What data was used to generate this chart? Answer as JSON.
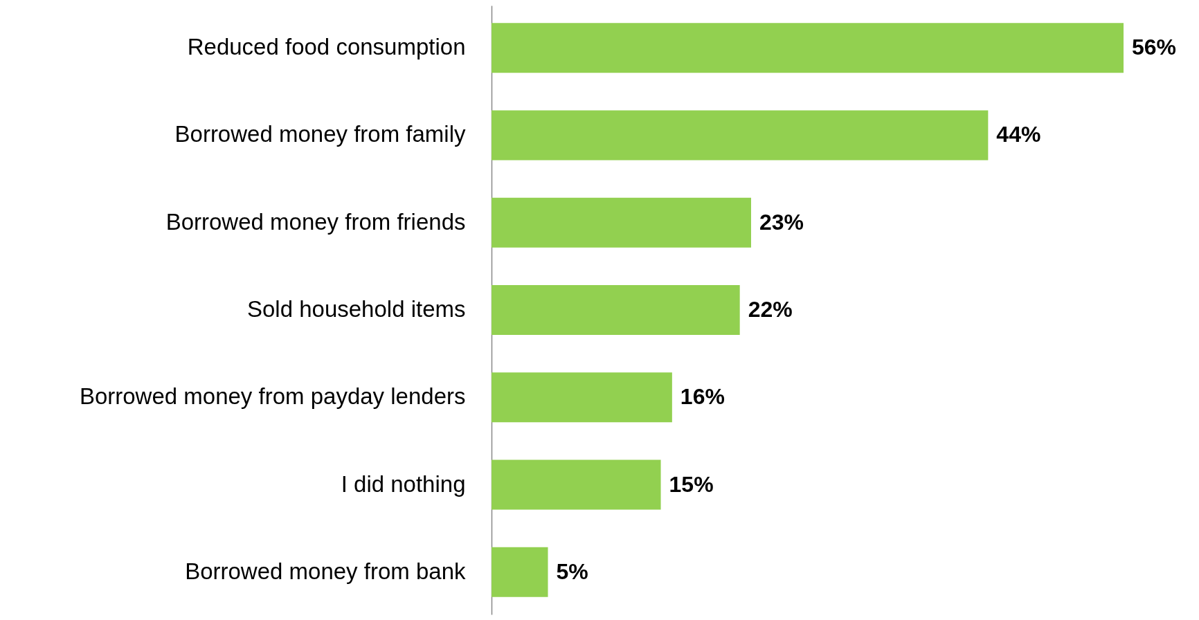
{
  "chart_data": {
    "type": "bar",
    "orientation": "horizontal",
    "categories": [
      "Reduced food consumption",
      "Borrowed money from family",
      "Borrowed money from friends",
      "Sold household items",
      "Borrowed money from payday lenders",
      "I did nothing",
      "Borrowed money from bank"
    ],
    "values": [
      56,
      44,
      23,
      22,
      16,
      15,
      5
    ],
    "value_labels": [
      "56%",
      "44%",
      "23%",
      "22%",
      "16%",
      "15%",
      "5%"
    ],
    "color": "#92d050"
  }
}
